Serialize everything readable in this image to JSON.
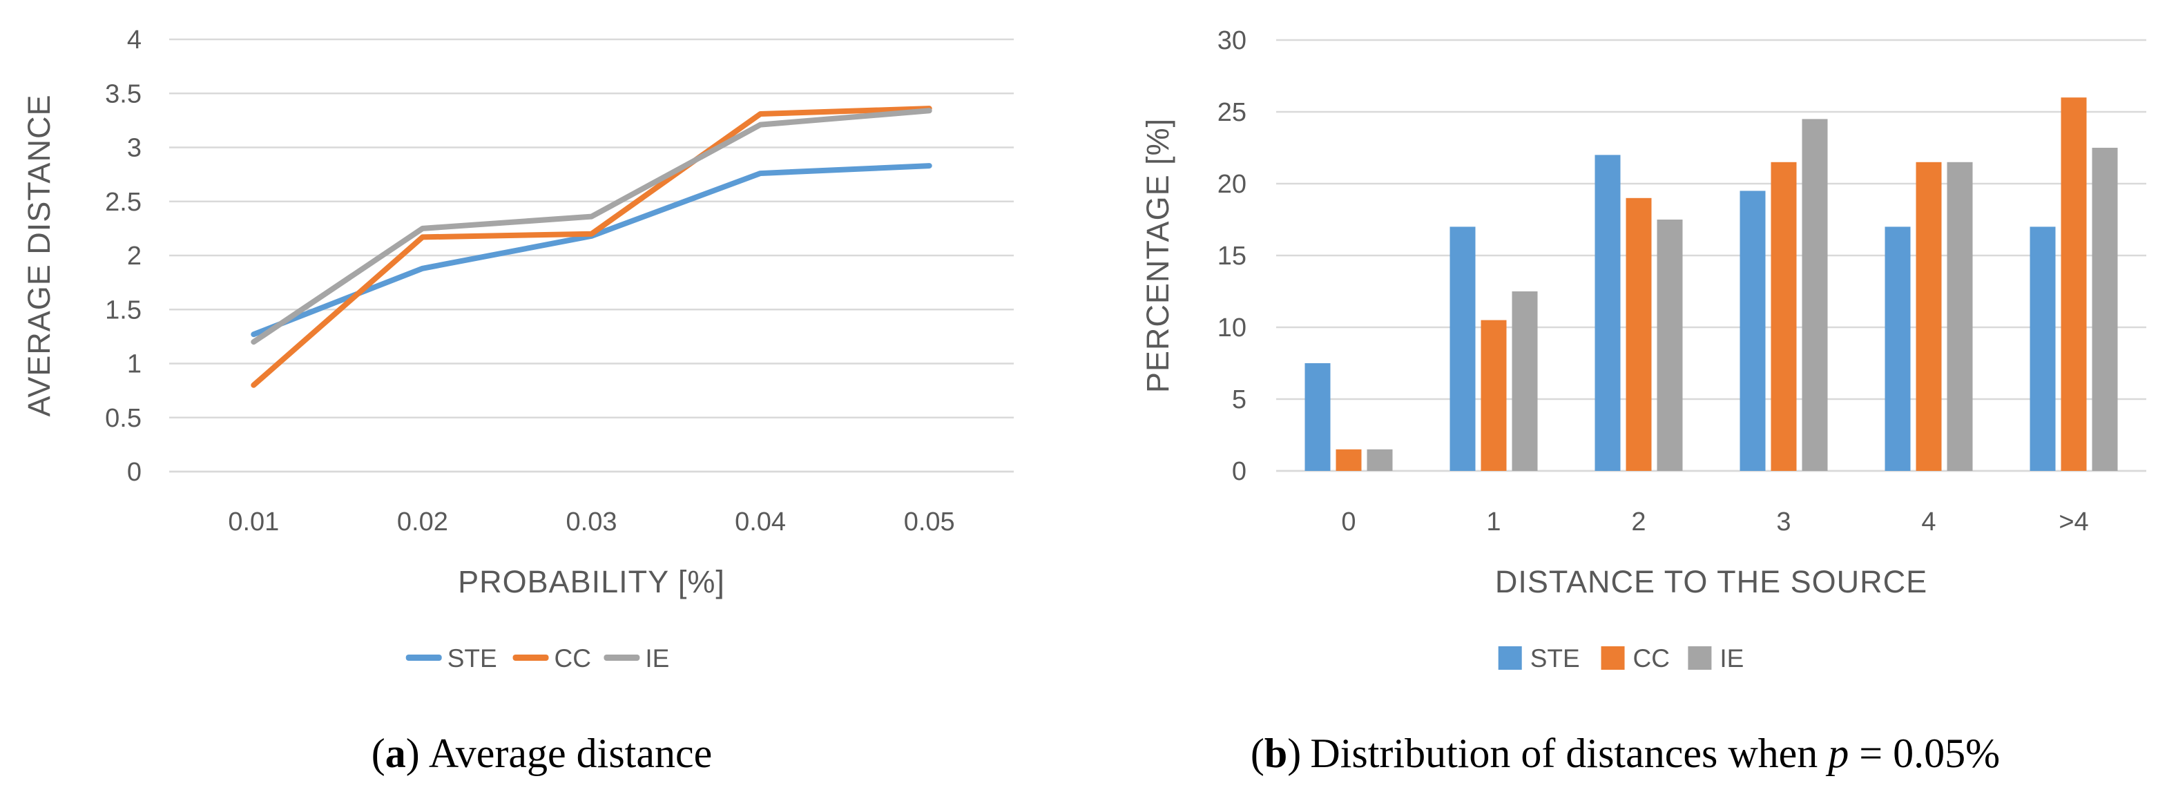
{
  "figure": {
    "background": "#ffffff",
    "colors": {
      "ste": "#5B9BD5",
      "cc": "#ED7D31",
      "ie": "#A5A5A5",
      "axis_text": "#595959",
      "gridline": "#D9D9D9",
      "caption_text": "#000000"
    }
  },
  "chart_data": [
    {
      "type": "line",
      "title": "",
      "xlabel": "PROBABILITY [%]",
      "ylabel": "AVERAGE DISTANCE",
      "x": [
        "0.01",
        "0.02",
        "0.03",
        "0.04",
        "0.05"
      ],
      "ylim": [
        0,
        4
      ],
      "ytick_step": 0.5,
      "grid": true,
      "legend_position": "bottom",
      "series": [
        {
          "name": "STE",
          "color": "#5B9BD5",
          "values": [
            1.27,
            1.88,
            2.18,
            2.76,
            2.83
          ]
        },
        {
          "name": "CC",
          "color": "#ED7D31",
          "values": [
            0.8,
            2.17,
            2.2,
            3.31,
            3.36
          ]
        },
        {
          "name": "IE",
          "color": "#A5A5A5",
          "values": [
            1.2,
            2.25,
            2.36,
            3.21,
            3.34
          ]
        }
      ]
    },
    {
      "type": "bar",
      "title": "",
      "xlabel": "DISTANCE TO THE SOURCE",
      "ylabel": "PERCENTAGE [%]",
      "categories": [
        "0",
        "1",
        "2",
        "3",
        "4",
        ">4"
      ],
      "ylim": [
        0,
        30
      ],
      "ytick_step": 5,
      "grid": true,
      "legend_position": "bottom",
      "series": [
        {
          "name": "STE",
          "color": "#5B9BD5",
          "values": [
            7.5,
            17,
            22,
            19.5,
            17,
            17
          ]
        },
        {
          "name": "CC",
          "color": "#ED7D31",
          "values": [
            1.5,
            10.5,
            19,
            21.5,
            21.5,
            26
          ]
        },
        {
          "name": "IE",
          "color": "#A5A5A5",
          "values": [
            1.5,
            12.5,
            17.5,
            24.5,
            21.5,
            22.5
          ]
        }
      ]
    }
  ],
  "captions": {
    "a": {
      "open": "(",
      "label": "a",
      "close": ")",
      "text": "Average distance"
    },
    "b": {
      "open": "(",
      "label": "b",
      "close": ")",
      "text": "Distribution of distances when",
      "math_var": "p",
      "math_rest": "= 0.05%"
    }
  }
}
